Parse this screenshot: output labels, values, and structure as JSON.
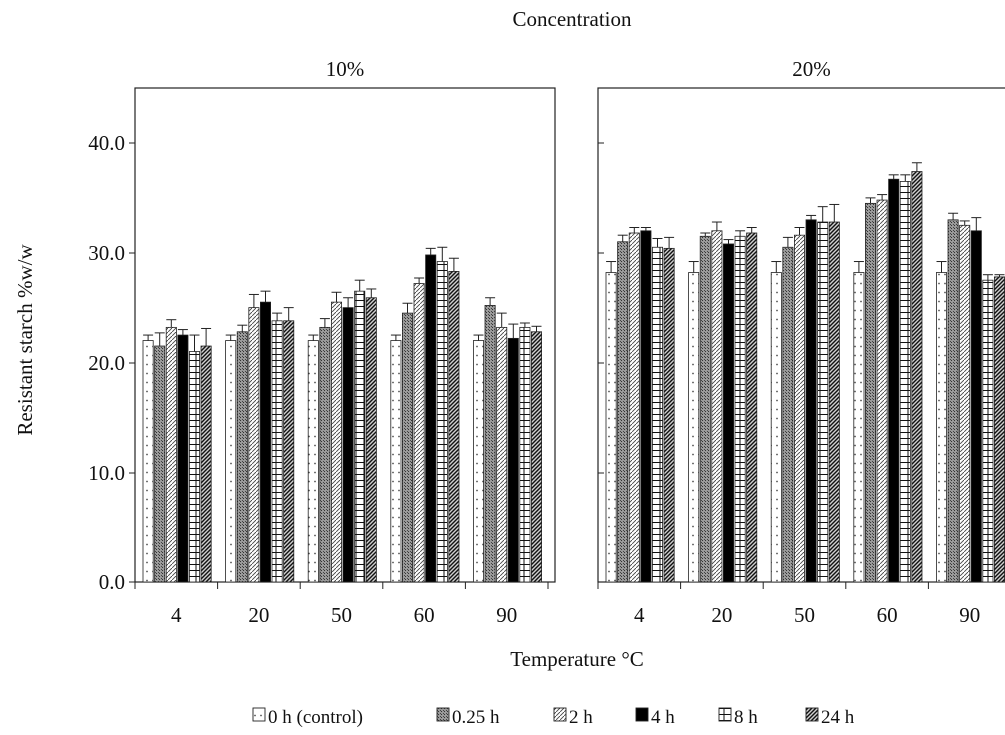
{
  "chart_data": {
    "type": "bar",
    "title": "Concentration",
    "xlabel": "Temperature °C",
    "ylabel": "Resistant starch %w/w",
    "ylim": [
      0,
      40
    ],
    "yticks": [
      "0.0",
      "10.0",
      "20.0",
      "30.0",
      "40.0"
    ],
    "categories": [
      "4",
      "20",
      "50",
      "60",
      "90"
    ],
    "legend_position": "bottom",
    "facets": [
      {
        "label": "10%",
        "series": [
          {
            "name": "0 h (control)",
            "values": [
              22.0,
              22.0,
              22.0,
              22.0,
              22.0
            ],
            "errors": [
              0.5,
              0.5,
              0.5,
              0.5,
              0.5
            ]
          },
          {
            "name": "0.25 h",
            "values": [
              21.5,
              22.8,
              23.2,
              24.5,
              25.2
            ],
            "errors": [
              1.2,
              0.6,
              0.8,
              0.9,
              0.7
            ]
          },
          {
            "name": "2 h",
            "values": [
              23.2,
              25.0,
              25.5,
              27.2,
              23.2
            ],
            "errors": [
              0.7,
              1.2,
              0.9,
              0.5,
              1.3
            ]
          },
          {
            "name": "4 h",
            "values": [
              22.5,
              25.5,
              25.0,
              29.8,
              22.2
            ],
            "errors": [
              0.5,
              1.0,
              0.9,
              0.6,
              1.3
            ]
          },
          {
            "name": "8 h",
            "values": [
              21.0,
              23.8,
              26.5,
              29.2,
              23.2
            ],
            "errors": [
              1.5,
              0.7,
              1.0,
              1.3,
              0.4
            ]
          },
          {
            "name": "24 h",
            "values": [
              21.5,
              23.8,
              25.9,
              28.3,
              22.8
            ],
            "errors": [
              1.6,
              1.2,
              0.8,
              1.2,
              0.5
            ]
          }
        ]
      },
      {
        "label": "20%",
        "series": [
          {
            "name": "0 h (control)",
            "values": [
              28.2,
              28.2,
              28.2,
              28.2,
              28.2
            ],
            "errors": [
              1.0,
              1.0,
              1.0,
              1.0,
              1.0
            ]
          },
          {
            "name": "0.25 h",
            "values": [
              31.0,
              31.5,
              30.5,
              34.5,
              33.0
            ],
            "errors": [
              0.6,
              0.3,
              0.9,
              0.5,
              0.6
            ]
          },
          {
            "name": "2 h",
            "values": [
              31.8,
              32.0,
              31.6,
              34.8,
              32.5
            ],
            "errors": [
              0.5,
              0.8,
              0.7,
              0.5,
              0.4
            ]
          },
          {
            "name": "4 h",
            "values": [
              32.0,
              30.8,
              33.0,
              36.7,
              32.0
            ],
            "errors": [
              0.3,
              0.4,
              0.4,
              0.4,
              1.2
            ]
          },
          {
            "name": "8 h",
            "values": [
              30.5,
              31.5,
              32.8,
              36.5,
              27.5
            ],
            "errors": [
              0.8,
              0.5,
              1.4,
              0.6,
              0.5
            ]
          },
          {
            "name": "24 h",
            "values": [
              30.4,
              31.8,
              32.8,
              37.4,
              27.8
            ],
            "errors": [
              1.0,
              0.5,
              1.6,
              0.8,
              0.2
            ]
          }
        ]
      }
    ],
    "legend": [
      {
        "symbol": "□",
        "label": "0 h (control)"
      },
      {
        "symbol": "▩",
        "label": "0.25 h"
      },
      {
        "symbol": "▧",
        "label": "2 h"
      },
      {
        "symbol": "■",
        "label": "4 h"
      },
      {
        "symbol": "⊟",
        "label": "8 h"
      },
      {
        "symbol": "▨",
        "label": "24 h"
      }
    ],
    "series_styles": [
      {
        "pattern": "dots",
        "base": "#ffffff"
      },
      {
        "pattern": "dense-cross",
        "base": "#8c8c8c"
      },
      {
        "pattern": "light-diag",
        "base": "#e4e4e4"
      },
      {
        "pattern": "solid",
        "base": "#000000"
      },
      {
        "pattern": "hgrid",
        "base": "#ffffff"
      },
      {
        "pattern": "dense-diag",
        "base": "#a0a0a0"
      }
    ]
  }
}
